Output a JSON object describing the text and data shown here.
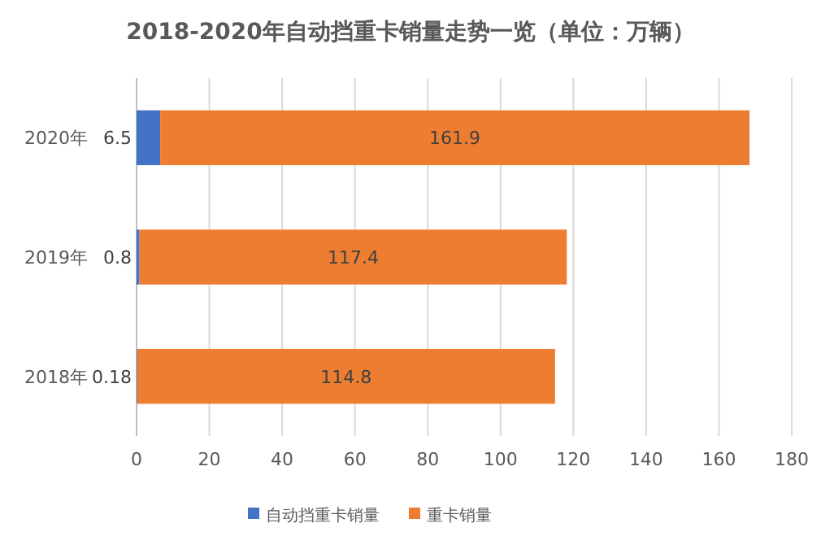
{
  "chart_data": {
    "type": "bar",
    "orientation": "horizontal",
    "stacked": true,
    "title": "2018-2020年自动挡重卡销量走势一览（单位：万辆）",
    "categories": [
      "2020年",
      "2019年",
      "2018年"
    ],
    "series": [
      {
        "name": "自动挡重卡销量",
        "color": "#4472c4",
        "values": [
          6.5,
          0.8,
          0.18
        ]
      },
      {
        "name": "重卡销量",
        "color": "#ed7d31",
        "values": [
          161.9,
          117.4,
          114.8
        ]
      }
    ],
    "xlim": [
      0,
      180
    ],
    "xticks": [
      0,
      20,
      40,
      60,
      80,
      100,
      120,
      140,
      160,
      180
    ],
    "grid": "x",
    "legend": "bottom",
    "data_labels": true
  }
}
